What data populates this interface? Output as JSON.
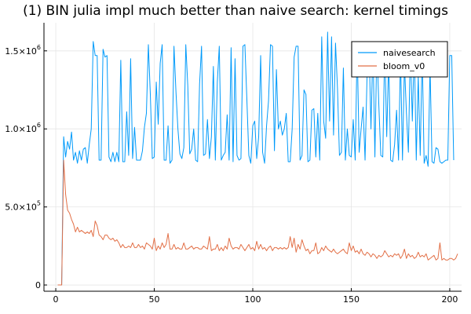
{
  "chart_data": {
    "type": "line",
    "title": "(1) BIN julia impl much better than naive search: kernel timings",
    "xlabel": "",
    "ylabel": "",
    "xlim": [
      -6,
      206
    ],
    "ylim": [
      -40000,
      1680000
    ],
    "grid": true,
    "legend_position": "top-right",
    "x_ticks": [
      {
        "value": 0,
        "label": "0"
      },
      {
        "value": 50,
        "label": "50"
      },
      {
        "value": 100,
        "label": "100"
      },
      {
        "value": 150,
        "label": "150"
      },
      {
        "value": 200,
        "label": "200"
      }
    ],
    "y_ticks": [
      {
        "value": 0,
        "mantissa": "0",
        "exponent": ""
      },
      {
        "value": 500000,
        "mantissa": "5.0×10",
        "exponent": "5"
      },
      {
        "value": 1000000,
        "mantissa": "1.0×10",
        "exponent": "6"
      },
      {
        "value": 1500000,
        "mantissa": "1.5×10",
        "exponent": "6"
      }
    ],
    "series": [
      {
        "name": "naivesearch",
        "color": "#009AFA",
        "values": [
          0,
          0,
          0,
          950000,
          820000,
          920000,
          870000,
          980000,
          800000,
          850000,
          780000,
          860000,
          800000,
          870000,
          880000,
          780000,
          900000,
          1000000,
          1560000,
          1470000,
          1470000,
          800000,
          800000,
          1510000,
          1460000,
          1470000,
          820000,
          790000,
          850000,
          790000,
          850000,
          790000,
          1440000,
          790000,
          790000,
          1110000,
          830000,
          1450000,
          810000,
          1010000,
          800000,
          800000,
          800000,
          860000,
          1010000,
          1100000,
          1540000,
          1220000,
          810000,
          820000,
          1300000,
          1030000,
          1420000,
          1540000,
          800000,
          800000,
          1020000,
          780000,
          800000,
          1530000,
          1240000,
          1000000,
          840000,
          810000,
          880000,
          1540000,
          1280000,
          840000,
          870000,
          1000000,
          800000,
          790000,
          1290000,
          1530000,
          830000,
          840000,
          1060000,
          810000,
          950000,
          1400000,
          800000,
          1300000,
          1530000,
          800000,
          830000,
          850000,
          1090000,
          800000,
          1520000,
          790000,
          1450000,
          830000,
          800000,
          810000,
          1530000,
          1540000,
          1190000,
          830000,
          780000,
          1020000,
          1050000,
          810000,
          950000,
          1470000,
          850000,
          780000,
          1020000,
          1180000,
          1540000,
          1530000,
          860000,
          1380000,
          1000000,
          1050000,
          960000,
          1000000,
          1100000,
          790000,
          790000,
          1000000,
          1460000,
          1530000,
          1530000,
          800000,
          830000,
          1250000,
          1220000,
          790000,
          800000,
          1120000,
          1130000,
          820000,
          1100000,
          800000,
          1590000,
          1050000,
          940000,
          1620000,
          1050000,
          1590000,
          960000,
          1550000,
          1260000,
          830000,
          850000,
          1390000,
          800000,
          1000000,
          830000,
          820000,
          1060000,
          800000,
          1540000,
          850000,
          1000000,
          1140000,
          800000,
          1330000,
          1540000,
          1000000,
          1540000,
          820000,
          1540000,
          1150000,
          830000,
          820000,
          1540000,
          950000,
          1450000,
          800000,
          790000,
          900000,
          1120000,
          800000,
          1480000,
          800000,
          1420000,
          1100000,
          850000,
          1530000,
          1050000,
          1530000,
          800000,
          1340000,
          830000,
          1500000,
          780000,
          830000,
          760000,
          1400000,
          790000,
          780000,
          880000,
          870000,
          790000,
          780000,
          790000,
          800000,
          800000,
          1470000,
          1470000,
          800000
        ]
      },
      {
        "name": "bloom_v0",
        "color": "#E26F46",
        "values": [
          0,
          0,
          0,
          800000,
          580000,
          480000,
          460000,
          420000,
          390000,
          340000,
          370000,
          340000,
          350000,
          340000,
          330000,
          340000,
          330000,
          350000,
          310000,
          410000,
          380000,
          320000,
          310000,
          290000,
          320000,
          320000,
          300000,
          290000,
          300000,
          280000,
          290000,
          270000,
          240000,
          260000,
          240000,
          240000,
          250000,
          240000,
          270000,
          240000,
          240000,
          260000,
          240000,
          250000,
          230000,
          270000,
          260000,
          250000,
          230000,
          300000,
          220000,
          250000,
          230000,
          270000,
          240000,
          260000,
          330000,
          230000,
          230000,
          260000,
          230000,
          240000,
          230000,
          230000,
          270000,
          230000,
          230000,
          240000,
          250000,
          230000,
          240000,
          240000,
          230000,
          230000,
          250000,
          240000,
          230000,
          310000,
          220000,
          230000,
          230000,
          260000,
          220000,
          240000,
          220000,
          250000,
          230000,
          300000,
          250000,
          230000,
          240000,
          240000,
          230000,
          260000,
          240000,
          220000,
          240000,
          260000,
          230000,
          240000,
          220000,
          280000,
          230000,
          260000,
          230000,
          240000,
          220000,
          240000,
          250000,
          220000,
          240000,
          240000,
          230000,
          240000,
          230000,
          240000,
          230000,
          240000,
          310000,
          240000,
          300000,
          210000,
          260000,
          230000,
          290000,
          250000,
          220000,
          230000,
          200000,
          220000,
          220000,
          270000,
          200000,
          210000,
          240000,
          220000,
          250000,
          230000,
          220000,
          210000,
          230000,
          210000,
          200000,
          210000,
          220000,
          230000,
          210000,
          200000,
          270000,
          220000,
          250000,
          210000,
          220000,
          200000,
          230000,
          200000,
          190000,
          210000,
          200000,
          180000,
          200000,
          190000,
          170000,
          190000,
          180000,
          190000,
          220000,
          200000,
          180000,
          190000,
          180000,
          200000,
          190000,
          200000,
          170000,
          190000,
          230000,
          170000,
          200000,
          180000,
          190000,
          170000,
          180000,
          210000,
          180000,
          190000,
          180000,
          200000,
          160000,
          170000,
          180000,
          190000,
          160000,
          170000,
          270000,
          160000,
          170000,
          160000,
          160000,
          170000,
          170000,
          160000,
          170000,
          200000
        ]
      }
    ]
  }
}
